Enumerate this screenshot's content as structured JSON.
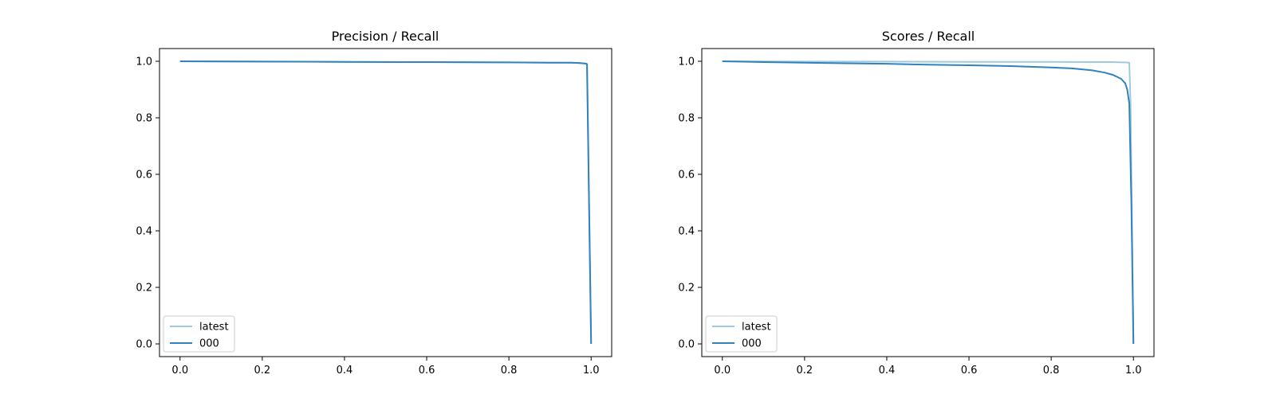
{
  "chart_data": [
    {
      "type": "line",
      "title": "Precision / Recall",
      "xlabel": "",
      "ylabel": "",
      "xlim": [
        -0.05,
        1.05
      ],
      "ylim": [
        -0.045,
        1.045
      ],
      "xticks": [
        "0.0",
        "0.2",
        "0.4",
        "0.6",
        "0.8",
        "1.0"
      ],
      "yticks": [
        "0.0",
        "0.2",
        "0.4",
        "0.6",
        "0.8",
        "1.0"
      ],
      "grid": false,
      "legend_position": "lower-left",
      "series": [
        {
          "name": "latest",
          "color": "#9ecae1",
          "x": [
            0.0,
            0.2,
            0.4,
            0.6,
            0.8,
            0.9,
            0.95,
            0.97,
            0.987,
            0.99,
            1.0
          ],
          "y": [
            1.0,
            0.999,
            0.998,
            0.997,
            0.996,
            0.995,
            0.995,
            0.994,
            0.992,
            0.99,
            0.0
          ]
        },
        {
          "name": "000",
          "color": "#3182bd",
          "x": [
            0.0,
            0.2,
            0.4,
            0.6,
            0.8,
            0.9,
            0.95,
            0.97,
            0.987,
            0.99,
            1.0
          ],
          "y": [
            1.0,
            0.999,
            0.998,
            0.997,
            0.996,
            0.995,
            0.995,
            0.994,
            0.992,
            0.99,
            0.0
          ]
        }
      ]
    },
    {
      "type": "line",
      "title": "Scores / Recall",
      "xlabel": "",
      "ylabel": "",
      "xlim": [
        -0.05,
        1.05
      ],
      "ylim": [
        -0.045,
        1.045
      ],
      "xticks": [
        "0.0",
        "0.2",
        "0.4",
        "0.6",
        "0.8",
        "1.0"
      ],
      "yticks": [
        "0.0",
        "0.2",
        "0.4",
        "0.6",
        "0.8",
        "1.0"
      ],
      "grid": false,
      "legend_position": "lower-left",
      "series": [
        {
          "name": "latest",
          "color": "#9ecae1",
          "x": [
            0.0,
            0.2,
            0.4,
            0.6,
            0.8,
            0.9,
            0.95,
            0.98,
            0.99,
            0.993,
            1.0
          ],
          "y": [
            1.0,
            0.999,
            0.999,
            0.998,
            0.998,
            0.997,
            0.997,
            0.996,
            0.995,
            0.85,
            0.0
          ]
        },
        {
          "name": "000",
          "color": "#3182bd",
          "x": [
            0.0,
            0.1,
            0.2,
            0.3,
            0.4,
            0.5,
            0.6,
            0.7,
            0.8,
            0.85,
            0.9,
            0.93,
            0.95,
            0.97,
            0.98,
            0.985,
            0.99,
            0.995,
            1.0
          ],
          "y": [
            1.0,
            0.997,
            0.995,
            0.993,
            0.991,
            0.988,
            0.986,
            0.983,
            0.978,
            0.975,
            0.968,
            0.96,
            0.952,
            0.938,
            0.922,
            0.9,
            0.85,
            0.5,
            0.0
          ]
        }
      ]
    }
  ]
}
